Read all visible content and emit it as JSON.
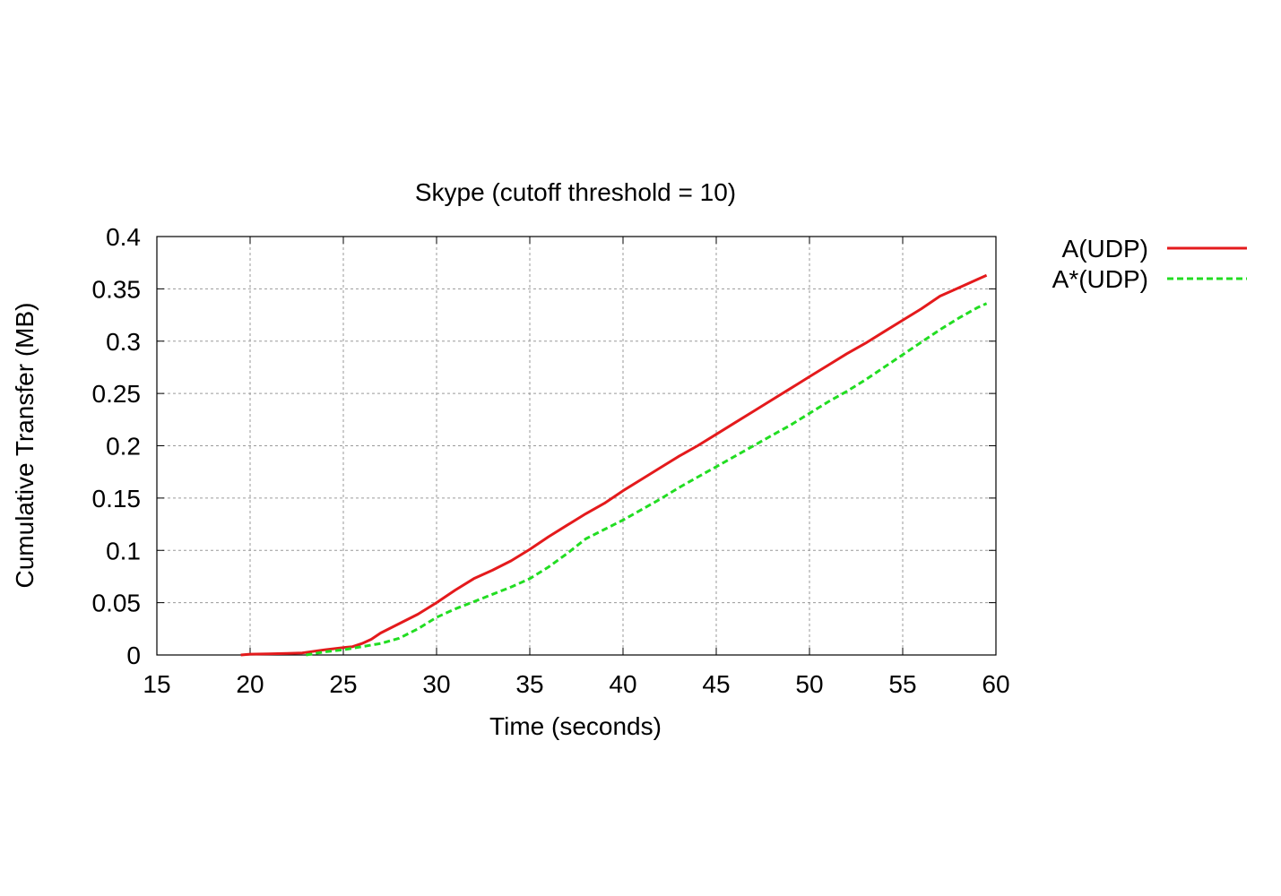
{
  "chart_data": {
    "type": "line",
    "title": "Skype (cutoff threshold = 10)",
    "xlabel": "Time (seconds)",
    "ylabel": "Cumulative Transfer (MB)",
    "xlim": [
      15,
      60
    ],
    "ylim": [
      0,
      0.4
    ],
    "xticks": [
      15,
      20,
      25,
      30,
      35,
      40,
      45,
      50,
      55,
      60
    ],
    "xtick_labels": [
      "15",
      "20",
      "25",
      "30",
      "35",
      "40",
      "45",
      "50",
      "55",
      "60"
    ],
    "yticks": [
      0,
      0.05,
      0.1,
      0.15,
      0.2,
      0.25,
      0.3,
      0.35,
      0.4
    ],
    "ytick_labels": [
      "0",
      "0.05",
      "0.1",
      "0.15",
      "0.2",
      "0.25",
      "0.3",
      "0.35",
      "0.4"
    ],
    "grid": true,
    "legend_position": "top-right, outside plot",
    "series": [
      {
        "name": "A(UDP)",
        "color": "#e41a1c",
        "dash": "solid",
        "points": [
          [
            19.5,
            0.0
          ],
          [
            20,
            0.0008
          ],
          [
            21,
            0.001
          ],
          [
            22,
            0.0015
          ],
          [
            22.8,
            0.002
          ],
          [
            24,
            0.005
          ],
          [
            25,
            0.007
          ],
          [
            25.5,
            0.008
          ],
          [
            26,
            0.011
          ],
          [
            26.5,
            0.015
          ],
          [
            27,
            0.021
          ],
          [
            28,
            0.03
          ],
          [
            29,
            0.039
          ],
          [
            30,
            0.05
          ],
          [
            31,
            0.062
          ],
          [
            32,
            0.073
          ],
          [
            33,
            0.081
          ],
          [
            34,
            0.09
          ],
          [
            35,
            0.101
          ],
          [
            36,
            0.113
          ],
          [
            37,
            0.124
          ],
          [
            38,
            0.135
          ],
          [
            39,
            0.145
          ],
          [
            40,
            0.157
          ],
          [
            41,
            0.168
          ],
          [
            42,
            0.179
          ],
          [
            43,
            0.19
          ],
          [
            44,
            0.2
          ],
          [
            45,
            0.211
          ],
          [
            46,
            0.222
          ],
          [
            47,
            0.233
          ],
          [
            48,
            0.244
          ],
          [
            49,
            0.255
          ],
          [
            50,
            0.266
          ],
          [
            51,
            0.277
          ],
          [
            52,
            0.288
          ],
          [
            53,
            0.298
          ],
          [
            54,
            0.309
          ],
          [
            55,
            0.32
          ],
          [
            56,
            0.331
          ],
          [
            57,
            0.343
          ],
          [
            58,
            0.351
          ],
          [
            59,
            0.359
          ],
          [
            59.5,
            0.363
          ]
        ]
      },
      {
        "name": "A*(UDP)",
        "color": "#22dd22",
        "dash": "dashed",
        "points": [
          [
            23,
            0.0
          ],
          [
            24,
            0.003
          ],
          [
            25,
            0.005
          ],
          [
            26,
            0.008
          ],
          [
            27,
            0.011
          ],
          [
            28,
            0.016
          ],
          [
            29,
            0.025
          ],
          [
            30,
            0.036
          ],
          [
            31,
            0.044
          ],
          [
            32,
            0.051
          ],
          [
            33,
            0.058
          ],
          [
            34,
            0.065
          ],
          [
            35,
            0.073
          ],
          [
            36,
            0.084
          ],
          [
            37,
            0.097
          ],
          [
            38,
            0.111
          ],
          [
            39,
            0.12
          ],
          [
            40,
            0.129
          ],
          [
            41,
            0.139
          ],
          [
            42,
            0.149
          ],
          [
            43,
            0.16
          ],
          [
            44,
            0.17
          ],
          [
            45,
            0.18
          ],
          [
            46,
            0.19
          ],
          [
            47,
            0.2
          ],
          [
            48,
            0.21
          ],
          [
            49,
            0.22
          ],
          [
            50,
            0.231
          ],
          [
            51,
            0.242
          ],
          [
            52,
            0.252
          ],
          [
            53,
            0.263
          ],
          [
            54,
            0.275
          ],
          [
            55,
            0.287
          ],
          [
            56,
            0.299
          ],
          [
            57,
            0.311
          ],
          [
            58,
            0.322
          ],
          [
            59,
            0.332
          ],
          [
            59.5,
            0.336
          ]
        ]
      }
    ]
  }
}
